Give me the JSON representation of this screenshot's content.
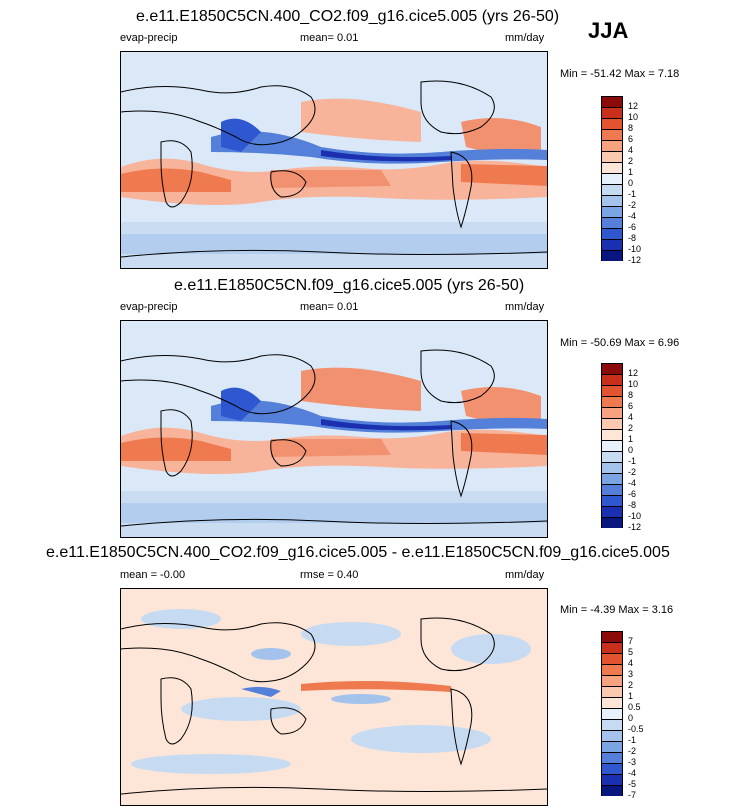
{
  "season": "JJA",
  "panels": [
    {
      "title": "e.e11.E1850C5CN.400_CO2.f09_g16.cice5.005 (yrs 26-50)",
      "left_label": "evap-precip",
      "mid_label": "mean=   0.01",
      "units": "mm/day",
      "minmax": "Min = -51.42 Max =   7.18",
      "legend": [
        "12",
        "10",
        "8",
        "6",
        "4",
        "2",
        "1",
        "0",
        "-1",
        "-2",
        "-4",
        "-6",
        "-8",
        "-10",
        "-12"
      ]
    },
    {
      "title": "e.e11.E1850C5CN.f09_g16.cice5.005 (yrs 26-50)",
      "left_label": "evap-precip",
      "mid_label": "mean=   0.01",
      "units": "mm/day",
      "minmax": "Min = -50.69 Max =   6.96",
      "legend": [
        "12",
        "10",
        "8",
        "6",
        "4",
        "2",
        "1",
        "0",
        "-1",
        "-2",
        "-4",
        "-6",
        "-8",
        "-10",
        "-12"
      ]
    },
    {
      "title": "e.e11.E1850C5CN.400_CO2.f09_g16.cice5.005 - e.e11.E1850C5CN.f09_g16.cice5.005",
      "left_label": "mean =  -0.00",
      "mid_label": "rmse =   0.40",
      "units": "mm/day",
      "minmax": "Min =  -4.39 Max =   3.16",
      "legend": [
        "7",
        "5",
        "4",
        "3",
        "2",
        "1",
        "0.5",
        "0",
        "-0.5",
        "-1",
        "-2",
        "-3",
        "-4",
        "-5",
        "-7"
      ]
    }
  ],
  "colors": {
    "abs_scale": [
      "#8b0a0a",
      "#c8301c",
      "#e2542f",
      "#ef7a4f",
      "#f7a37f",
      "#fbc9b0",
      "#fde6d8",
      "#e8f0fa",
      "#c6dbf2",
      "#a3c3ec",
      "#7aa4e3",
      "#5480da",
      "#2f57cf",
      "#1a30b0",
      "#0a1680"
    ],
    "diff_scale": [
      "#8b0a0a",
      "#c8301c",
      "#e2542f",
      "#ef7a4f",
      "#f7a37f",
      "#fbc9b0",
      "#fde6d8",
      "#e8f0fa",
      "#c6dbf2",
      "#a3c3ec",
      "#7aa4e3",
      "#5480da",
      "#2f57cf",
      "#1a30b0",
      "#0a1680"
    ]
  }
}
